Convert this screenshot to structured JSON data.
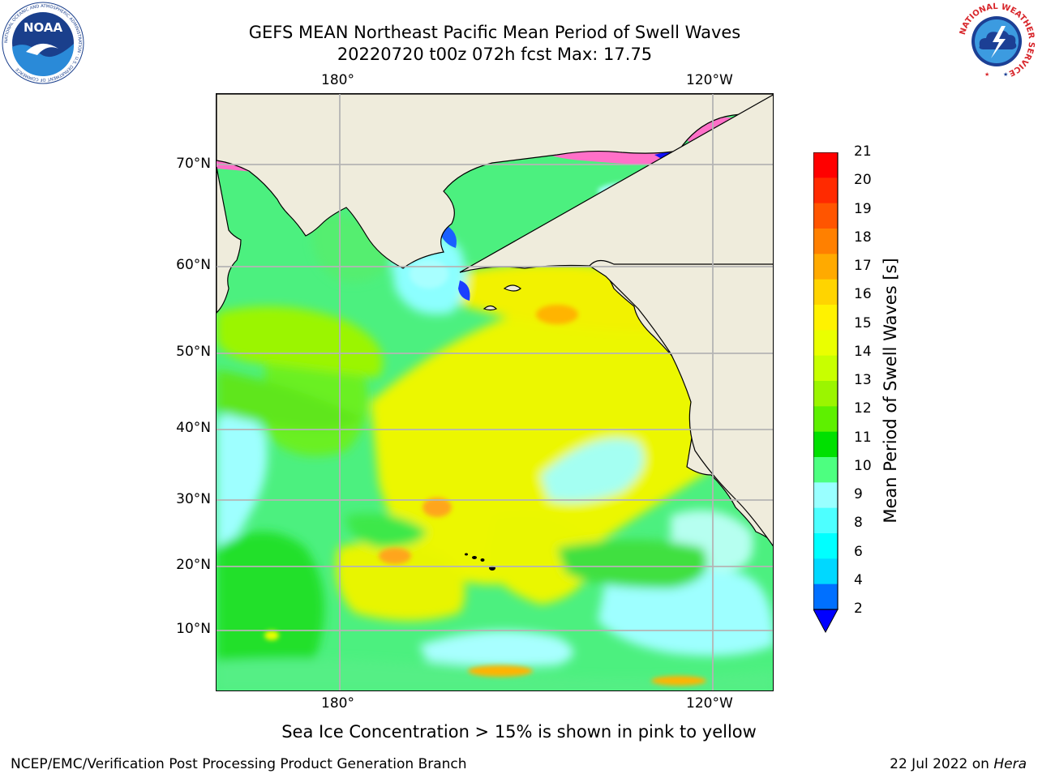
{
  "title": {
    "line1": "GEFS MEAN Northeast Pacific Mean Period of Swell Waves",
    "line2": "20220720 t00z 072h fcst   Max: 17.75"
  },
  "map": {
    "lon_labels_top": [
      "180°",
      "120°W"
    ],
    "lon_labels_bottom": [
      "180°",
      "120°W"
    ],
    "lat_labels": [
      "70°N",
      "60°N",
      "50°N",
      "40°N",
      "30°N",
      "20°N",
      "10°N"
    ],
    "land_color": "#efecdc",
    "ocean_color": "#4cf07f"
  },
  "colorbar": {
    "label": "Mean Period of Swell Waves [s]",
    "ticks": [
      "21",
      "20",
      "19",
      "18",
      "17",
      "16",
      "15",
      "14",
      "13",
      "12",
      "11",
      "10",
      "9",
      "8",
      "6",
      "4",
      "2"
    ],
    "colors_top_to_bottom": [
      "#ff0000",
      "#ff2a00",
      "#ff5500",
      "#ff8000",
      "#ffaa00",
      "#ffd400",
      "#fff200",
      "#eaff00",
      "#c8ff00",
      "#9bf500",
      "#5ef000",
      "#00e000",
      "#4dff80",
      "#99ffff",
      "#4dffff",
      "#00ffff",
      "#00d8ff",
      "#0070ff"
    ],
    "extend_color": "#0000ff"
  },
  "subtitle": "Sea Ice Concentration > 15% is shown in pink to yellow",
  "footer": {
    "left": "NCEP/EMC/Verification Post Processing Product Generation Branch",
    "date": "22 Jul 2022 on ",
    "host": "Hera"
  },
  "logos": {
    "noaa_text": "NOAA",
    "noaa_ring_text": "NATIONAL OCEANIC AND ATMOSPHERIC ADMINISTRATION · U.S. DEPARTMENT OF COMMERCE",
    "nws_ring_text": "NATIONAL WEATHER SERVICE"
  }
}
